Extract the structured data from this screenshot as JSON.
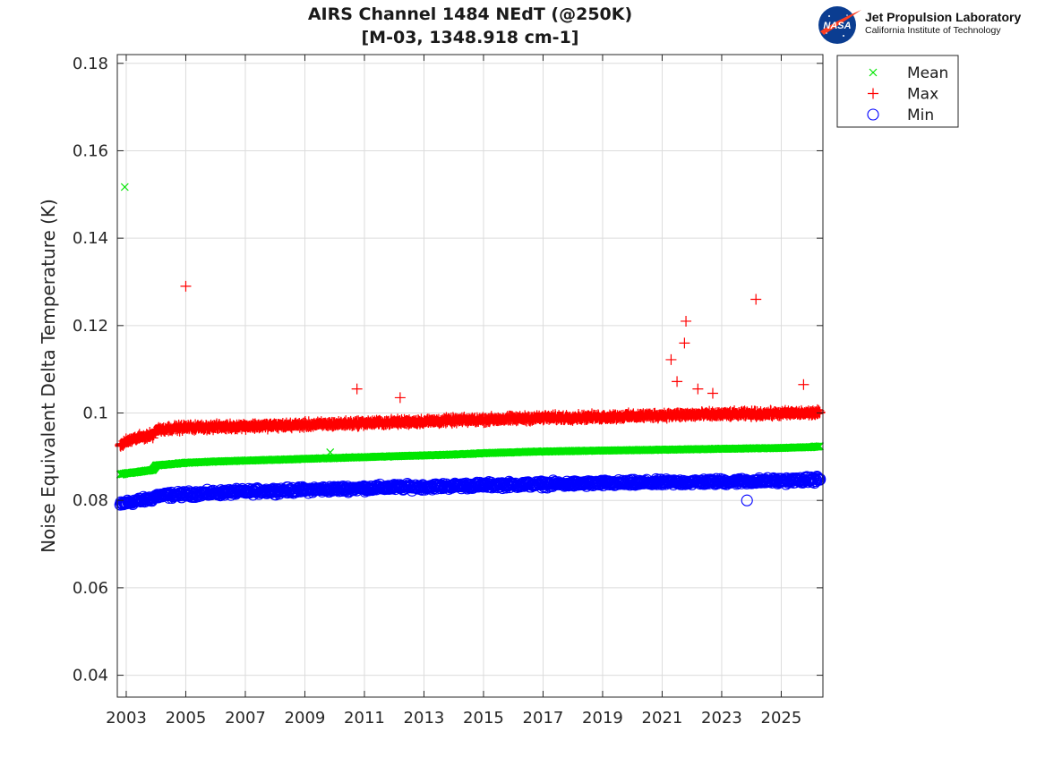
{
  "chart_data": {
    "type": "scatter",
    "title": [
      "AIRS Channel 1484 NEdT (@250K)",
      "[M-03, 1348.918 cm-1]"
    ],
    "ylabel": "Noise Equivalent Delta Temperature (K)",
    "xlabel": "",
    "xlim": [
      2002.7,
      2026.4
    ],
    "ylim": [
      0.035,
      0.182
    ],
    "xticks": [
      "2003",
      "2005",
      "2007",
      "2009",
      "2011",
      "2013",
      "2015",
      "2017",
      "2019",
      "2021",
      "2023",
      "2025"
    ],
    "yticks": [
      "0.04",
      "0.06",
      "0.08",
      "0.1",
      "0.12",
      "0.14",
      "0.16",
      "0.18"
    ],
    "grid": true,
    "legend_position": "outside-top-right",
    "series": [
      {
        "name": "Mean",
        "marker": "x",
        "color": "#00e600",
        "x": [
          2002.8,
          2003.0,
          2003.5,
          2003.9,
          2004.0,
          2004.5,
          2005.0,
          2006.0,
          2007.0,
          2008.0,
          2009.0,
          2010.0,
          2011.0,
          2012.0,
          2013.0,
          2014.0,
          2015.0,
          2016.0,
          2017.0,
          2018.0,
          2019.0,
          2020.0,
          2021.0,
          2022.0,
          2023.0,
          2024.0,
          2025.0,
          2026.0,
          2026.3
        ],
        "y": [
          0.0859,
          0.0862,
          0.0866,
          0.087,
          0.088,
          0.0883,
          0.0886,
          0.0889,
          0.0891,
          0.0893,
          0.0895,
          0.0897,
          0.0899,
          0.0901,
          0.0903,
          0.0905,
          0.0908,
          0.091,
          0.0912,
          0.0913,
          0.0914,
          0.0915,
          0.0916,
          0.0917,
          0.0918,
          0.0919,
          0.092,
          0.0922,
          0.0924
        ]
      },
      {
        "name": "Max",
        "marker": "+",
        "color": "#ff0000",
        "x": [
          2002.8,
          2003.0,
          2003.5,
          2003.9,
          2004.0,
          2004.5,
          2005.0,
          2006.0,
          2007.0,
          2008.0,
          2009.0,
          2010.0,
          2011.0,
          2012.0,
          2013.0,
          2014.0,
          2015.0,
          2016.0,
          2017.0,
          2018.0,
          2019.0,
          2020.0,
          2021.0,
          2022.0,
          2023.0,
          2024.0,
          2025.0,
          2026.0,
          2026.3
        ],
        "y": [
          0.0925,
          0.0935,
          0.0945,
          0.095,
          0.0962,
          0.0965,
          0.0967,
          0.0968,
          0.097,
          0.0971,
          0.0973,
          0.0975,
          0.0977,
          0.0979,
          0.0981,
          0.0983,
          0.0985,
          0.0987,
          0.0989,
          0.099,
          0.0991,
          0.0993,
          0.0995,
          0.0996,
          0.0997,
          0.0998,
          0.0999,
          0.1,
          0.1002
        ]
      },
      {
        "name": "Min",
        "marker": "o",
        "color": "#0000ff",
        "x": [
          2002.8,
          2003.0,
          2003.5,
          2003.9,
          2004.0,
          2004.5,
          2005.0,
          2006.0,
          2007.0,
          2008.0,
          2009.0,
          2010.0,
          2011.0,
          2012.0,
          2013.0,
          2014.0,
          2015.0,
          2016.0,
          2017.0,
          2018.0,
          2019.0,
          2020.0,
          2021.0,
          2022.0,
          2023.0,
          2024.0,
          2025.0,
          2026.0,
          2026.3
        ],
        "y": [
          0.079,
          0.0795,
          0.08,
          0.0805,
          0.081,
          0.0812,
          0.0814,
          0.0817,
          0.082,
          0.0822,
          0.0824,
          0.0826,
          0.0828,
          0.083,
          0.0831,
          0.0833,
          0.0835,
          0.0836,
          0.0837,
          0.0838,
          0.0839,
          0.084,
          0.0841,
          0.0842,
          0.0843,
          0.0844,
          0.0845,
          0.0847,
          0.0849
        ]
      }
    ],
    "outliers": [
      {
        "series": "Mean",
        "x": 2002.95,
        "y": 0.1517
      },
      {
        "series": "Mean",
        "x": 2009.85,
        "y": 0.091
      },
      {
        "series": "Max",
        "x": 2005.0,
        "y": 0.129
      },
      {
        "series": "Max",
        "x": 2010.75,
        "y": 0.1055
      },
      {
        "series": "Max",
        "x": 2012.2,
        "y": 0.1035
      },
      {
        "series": "Max",
        "x": 2021.3,
        "y": 0.1122
      },
      {
        "series": "Max",
        "x": 2021.5,
        "y": 0.1072
      },
      {
        "series": "Max",
        "x": 2021.75,
        "y": 0.116
      },
      {
        "series": "Max",
        "x": 2021.8,
        "y": 0.121
      },
      {
        "series": "Max",
        "x": 2022.2,
        "y": 0.1055
      },
      {
        "series": "Max",
        "x": 2022.7,
        "y": 0.1045
      },
      {
        "series": "Max",
        "x": 2024.15,
        "y": 0.126
      },
      {
        "series": "Max",
        "x": 2025.75,
        "y": 0.1065
      },
      {
        "series": "Min",
        "x": 2023.85,
        "y": 0.08
      }
    ]
  },
  "logo": {
    "nasa_text": "NASA",
    "line1": "Jet Propulsion Laboratory",
    "line2": "California Institute of Technology"
  }
}
